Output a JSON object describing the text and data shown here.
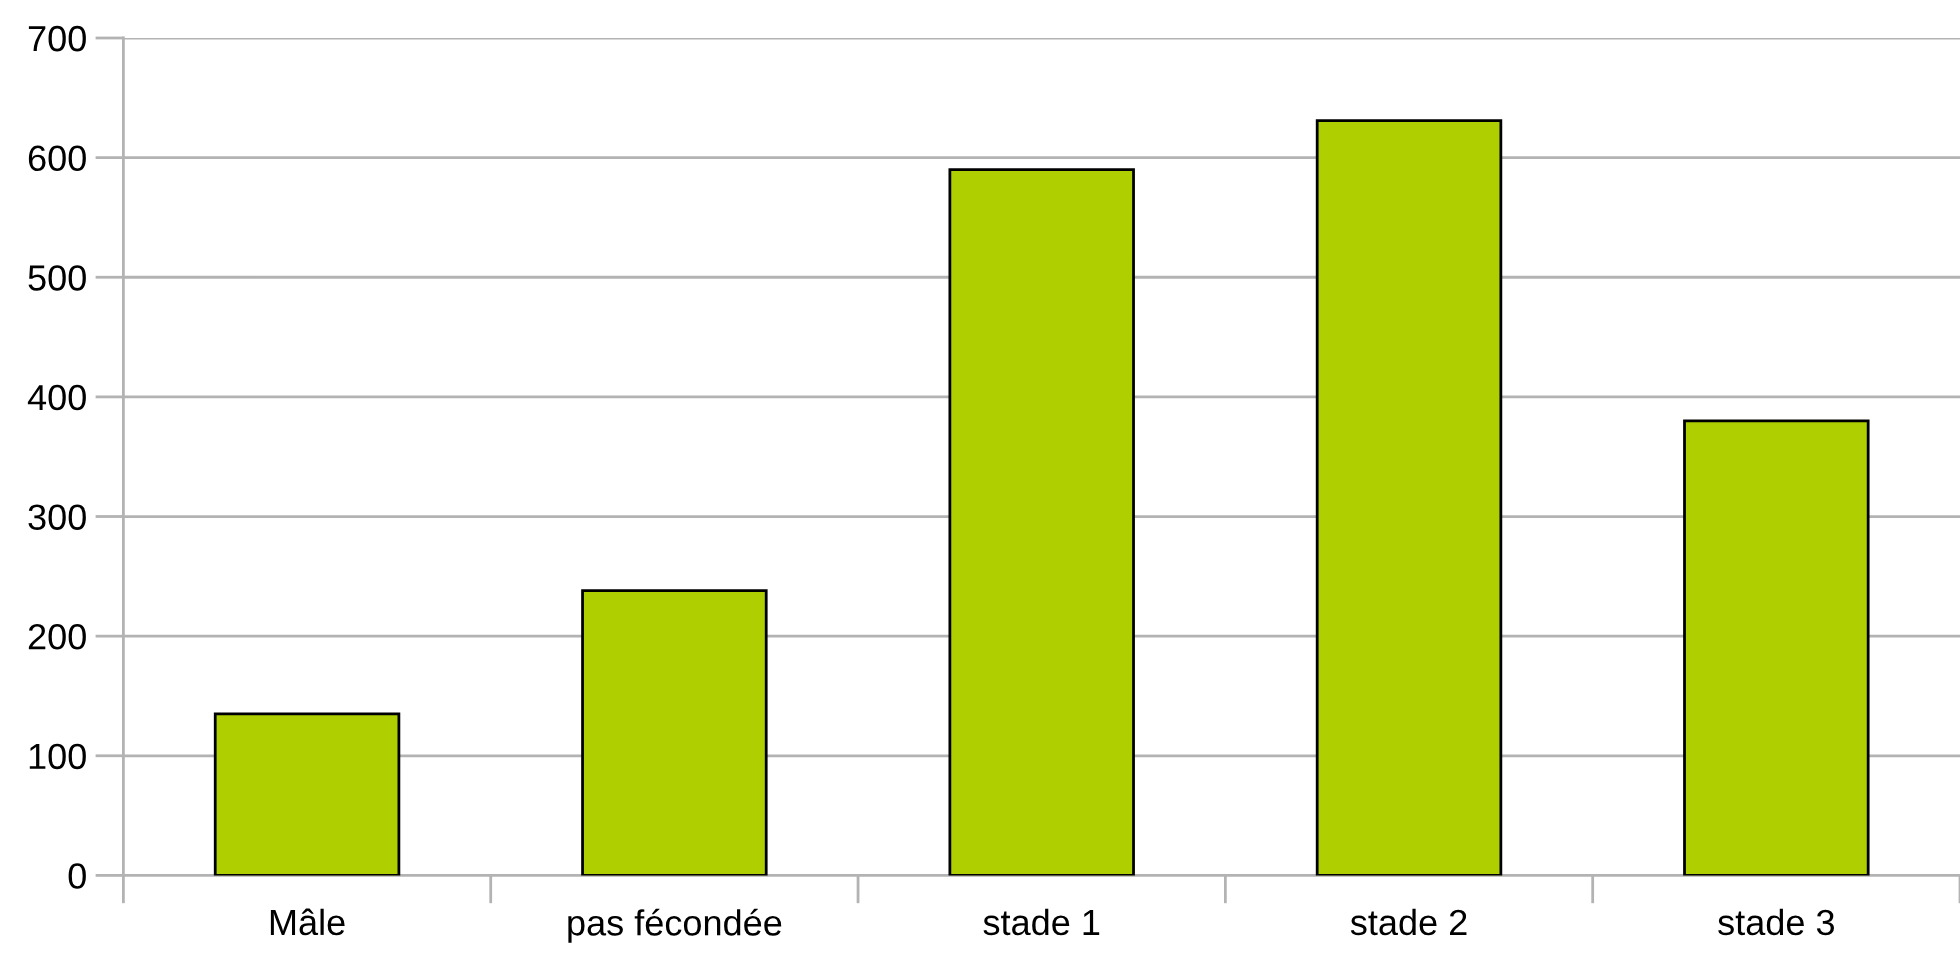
{
  "chart_data": {
    "type": "bar",
    "categories": [
      "Mâle",
      "pas fécondée",
      "stade 1",
      "stade 2",
      "stade 3"
    ],
    "values": [
      135,
      238,
      590,
      631,
      380
    ],
    "color": "#b0cf00",
    "ylim": [
      0,
      700
    ],
    "yticks": [
      0,
      100,
      200,
      300,
      400,
      500,
      600,
      700
    ],
    "grid": "y"
  }
}
